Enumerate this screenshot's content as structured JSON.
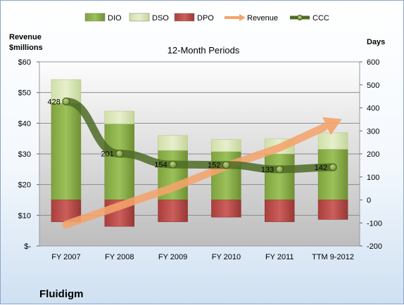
{
  "chart_data": {
    "type": "bar",
    "title": "12-Month Periods",
    "company": "Fluidigm",
    "left_axis": {
      "label_line1": "Revenue",
      "label_line2": "$millions",
      "min": 0,
      "max": 60,
      "tick_labels": [
        "$-",
        "$10",
        "$20",
        "$30",
        "$40",
        "$50",
        "$60"
      ]
    },
    "right_axis": {
      "label": "Days",
      "min": -200,
      "max": 600,
      "tick_labels": [
        "-200",
        "-100",
        "0",
        "100",
        "200",
        "300",
        "400",
        "500",
        "600"
      ]
    },
    "categories": [
      "FY 2007",
      "FY 2008",
      "FY 2009",
      "FY 2010",
      "FY 2011",
      "TTM 9-2012"
    ],
    "series": [
      {
        "name": "DIO",
        "axis": "days",
        "color": "#8db04a",
        "values": [
          420,
          330,
          215,
          210,
          200,
          220
        ]
      },
      {
        "name": "DSO",
        "axis": "days",
        "color": "#d8e6b4",
        "values": [
          103,
          56,
          65,
          52,
          65,
          72
        ]
      },
      {
        "name": "DPO",
        "axis": "days",
        "color": "#c0504d",
        "values": [
          -95,
          -115,
          -95,
          -75,
          -95,
          -85
        ]
      },
      {
        "name": "Revenue",
        "axis": "revenue",
        "color": "#f4a46c",
        "values": [
          7,
          13,
          19,
          26,
          32,
          40
        ],
        "style": "arrow"
      },
      {
        "name": "CCC",
        "axis": "days",
        "color": "#4e6b26",
        "values": [
          428,
          201,
          154,
          152,
          133,
          142
        ],
        "labels": [
          "428",
          "201",
          "154",
          "152",
          "133",
          "142"
        ]
      }
    ],
    "grid": true,
    "legend": "top"
  }
}
